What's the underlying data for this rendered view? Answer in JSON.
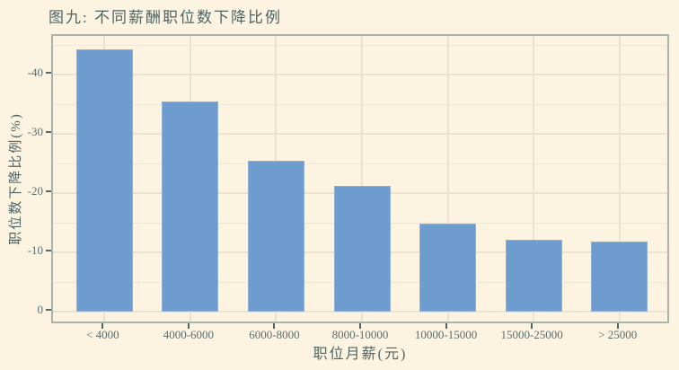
{
  "chart_data": {
    "type": "bar",
    "title": "图九: 不同薪酬职位数下降比例",
    "xlabel": "职位月薪(元)",
    "ylabel": "职位数下降比例(%)",
    "categories": [
      "< 4000",
      "4000-6000",
      "6000-8000",
      "8000-10000",
      "10000-15000",
      "15000-25000",
      "> 25000"
    ],
    "values": [
      -44.2,
      -35.5,
      -25.5,
      -21.2,
      -14.9,
      -12.1,
      -11.8
    ],
    "y_axis_inverted": true,
    "ylim": [
      2.3,
      -46.5
    ],
    "y_major_ticks": [
      0,
      -10,
      -20,
      -30,
      -40
    ],
    "y_tick_labels": [
      "0",
      "-10",
      "-20",
      "-30",
      "-40"
    ],
    "y_minor_gridlines": [
      -5,
      -15,
      -25,
      -35,
      -45
    ],
    "grid": "horizontal major+minor, vertical at category centers",
    "legend": "none"
  },
  "colors": {
    "background": "#fcf3e0",
    "bar_fill": "#6f9cce",
    "bar_stroke": "#93afd0",
    "grid_major": "#ebe2cf",
    "grid_minor": "#f0e8d6",
    "panel_border": "#aab4ae",
    "tick_mark": "#55666a",
    "tick_label_text": "#5c6e6e",
    "title_text": "#4e6566"
  }
}
